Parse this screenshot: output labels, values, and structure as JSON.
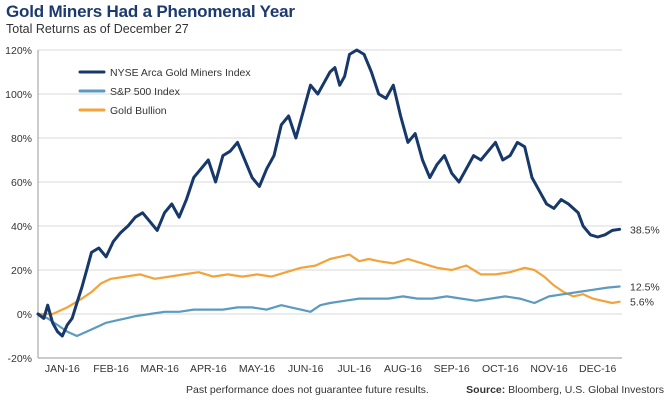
{
  "header": {
    "title": "Gold Miners Had a Phenomenal Year",
    "subtitle": "Total Returns as of December 27"
  },
  "footer": {
    "disclaimer": "Past performance does not guarantee future results.",
    "source_label": "Source:",
    "source_text": " Bloomberg, U.S. Global Investors"
  },
  "chart_data": {
    "type": "line",
    "title": "Gold Miners Had a Phenomenal Year",
    "subtitle": "Total Returns as of December 27",
    "xlabel": "",
    "ylabel": "",
    "ylim": [
      -20,
      120
    ],
    "y_ticks": [
      -20,
      0,
      20,
      40,
      60,
      80,
      100,
      120
    ],
    "y_tick_labels": [
      "-20%",
      "0%",
      "20%",
      "40%",
      "60%",
      "80%",
      "100%",
      "120%"
    ],
    "x_tick_labels": [
      "JAN-16",
      "FEB-16",
      "MAR-16",
      "APR-16",
      "MAY-16",
      "JUN-16",
      "JUL-16",
      "AUG-16",
      "SEP-16",
      "OCT-16",
      "NOV-16",
      "DEC-16"
    ],
    "xlim": [
      0,
      12
    ],
    "grid": "horizontal",
    "legend_position": "top-left",
    "series": [
      {
        "name": "NYSE Arca Gold Miners Index",
        "color": "#17386a",
        "end_label": "38.5%",
        "x": [
          0.0,
          0.12,
          0.2,
          0.3,
          0.4,
          0.5,
          0.6,
          0.7,
          0.8,
          0.9,
          1.0,
          1.1,
          1.25,
          1.4,
          1.55,
          1.7,
          1.85,
          2.0,
          2.15,
          2.3,
          2.45,
          2.6,
          2.75,
          2.9,
          3.05,
          3.2,
          3.35,
          3.5,
          3.65,
          3.8,
          3.95,
          4.1,
          4.25,
          4.4,
          4.55,
          4.7,
          4.85,
          5.0,
          5.15,
          5.3,
          5.45,
          5.6,
          5.75,
          5.9,
          6.0,
          6.1,
          6.2,
          6.3,
          6.4,
          6.55,
          6.7,
          6.85,
          7.0,
          7.15,
          7.3,
          7.45,
          7.6,
          7.75,
          7.9,
          8.05,
          8.2,
          8.35,
          8.5,
          8.65,
          8.8,
          8.95,
          9.1,
          9.25,
          9.4,
          9.55,
          9.7,
          9.85,
          10.0,
          10.15,
          10.3,
          10.45,
          10.6,
          10.75,
          10.9,
          11.0,
          11.1,
          11.2,
          11.35,
          11.5,
          11.65,
          11.8,
          11.95
        ],
        "y": [
          0,
          -2,
          4,
          -4,
          -8,
          -10,
          -5,
          -2,
          5,
          12,
          20,
          28,
          30,
          26,
          33,
          37,
          40,
          44,
          46,
          42,
          38,
          46,
          50,
          44,
          52,
          62,
          66,
          70,
          60,
          72,
          74,
          78,
          70,
          62,
          58,
          66,
          72,
          86,
          90,
          80,
          92,
          104,
          100,
          106,
          110,
          112,
          104,
          108,
          118,
          120,
          118,
          110,
          100,
          98,
          104,
          90,
          78,
          82,
          70,
          62,
          68,
          72,
          64,
          60,
          66,
          72,
          70,
          74,
          78,
          70,
          72,
          78,
          76,
          62,
          56,
          50,
          48,
          52,
          50,
          48,
          46,
          40,
          36,
          35,
          36,
          38,
          38.5
        ]
      },
      {
        "name": "S&P 500 Index",
        "color": "#5b9bbf",
        "end_label": "12.5%",
        "x": [
          0.0,
          0.2,
          0.4,
          0.6,
          0.8,
          1.0,
          1.2,
          1.4,
          1.6,
          1.8,
          2.0,
          2.3,
          2.6,
          2.9,
          3.2,
          3.5,
          3.8,
          4.1,
          4.4,
          4.7,
          5.0,
          5.2,
          5.4,
          5.6,
          5.8,
          6.0,
          6.3,
          6.6,
          6.9,
          7.2,
          7.5,
          7.8,
          8.1,
          8.4,
          8.7,
          9.0,
          9.3,
          9.6,
          9.9,
          10.2,
          10.5,
          10.8,
          11.1,
          11.4,
          11.7,
          11.95
        ],
        "y": [
          0,
          -2,
          -5,
          -8,
          -10,
          -8,
          -6,
          -4,
          -3,
          -2,
          -1,
          0,
          1,
          1,
          2,
          2,
          2,
          3,
          3,
          2,
          4,
          3,
          2,
          1,
          4,
          5,
          6,
          7,
          7,
          7,
          8,
          7,
          7,
          8,
          7,
          6,
          7,
          8,
          7,
          5,
          8,
          9,
          10,
          11,
          12,
          12.5
        ]
      },
      {
        "name": "Gold Bullion",
        "color": "#f2a33a",
        "end_label": "5.6%",
        "x": [
          0.0,
          0.3,
          0.6,
          0.9,
          1.1,
          1.3,
          1.5,
          1.8,
          2.1,
          2.4,
          2.7,
          3.0,
          3.3,
          3.6,
          3.9,
          4.2,
          4.5,
          4.8,
          5.1,
          5.4,
          5.7,
          6.0,
          6.2,
          6.4,
          6.6,
          6.8,
          7.0,
          7.3,
          7.6,
          7.9,
          8.2,
          8.5,
          8.8,
          9.1,
          9.4,
          9.7,
          10.0,
          10.2,
          10.4,
          10.6,
          10.8,
          11.0,
          11.2,
          11.4,
          11.6,
          11.8,
          11.95
        ],
        "y": [
          0,
          0,
          3,
          7,
          10,
          14,
          16,
          17,
          18,
          16,
          17,
          18,
          19,
          17,
          18,
          17,
          18,
          17,
          19,
          21,
          22,
          25,
          26,
          27,
          24,
          25,
          24,
          23,
          25,
          23,
          21,
          20,
          22,
          18,
          18,
          19,
          21,
          20,
          17,
          13,
          10,
          8,
          9,
          7,
          6,
          5,
          5.6
        ]
      }
    ]
  }
}
